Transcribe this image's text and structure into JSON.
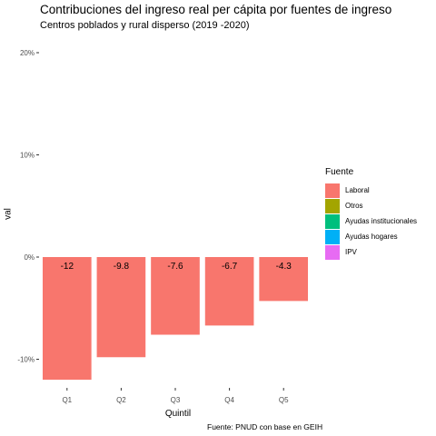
{
  "chart_data": {
    "type": "bar",
    "title": "Contribuciones del ingreso real per cápita  por fuentes de ingreso",
    "subtitle": "Centros poblados y rural disperso (2019 -2020)",
    "caption": "Fuente: PNUD con base en  GEIH",
    "xlabel": "Quintil",
    "ylabel": "val",
    "categories": [
      "Q1",
      "Q2",
      "Q3",
      "Q4",
      "Q5"
    ],
    "series": [
      {
        "name": "Laboral",
        "values": [
          -12,
          -9.8,
          -7.6,
          -6.7,
          -4.3
        ]
      }
    ],
    "data_labels": [
      "-12",
      "-9.8",
      "-7.6",
      "-6.7",
      "-4.3"
    ],
    "yticks": [
      -10,
      0,
      10,
      20
    ],
    "ytick_labels": [
      "-10%",
      "0%",
      "10%",
      "20%"
    ],
    "ylim": [
      -12.3,
      20.5
    ],
    "grid": false,
    "legend": {
      "title": "Fuente",
      "placement": "right",
      "items": [
        {
          "label": "Laboral",
          "color": "#F8766D"
        },
        {
          "label": "Otros",
          "color": "#A3A500"
        },
        {
          "label": "Ayudas institucionales",
          "color": "#00BF7D"
        },
        {
          "label": "Ayudas hogares",
          "color": "#00B0F6"
        },
        {
          "label": "IPV",
          "color": "#E76BF3"
        }
      ]
    }
  }
}
